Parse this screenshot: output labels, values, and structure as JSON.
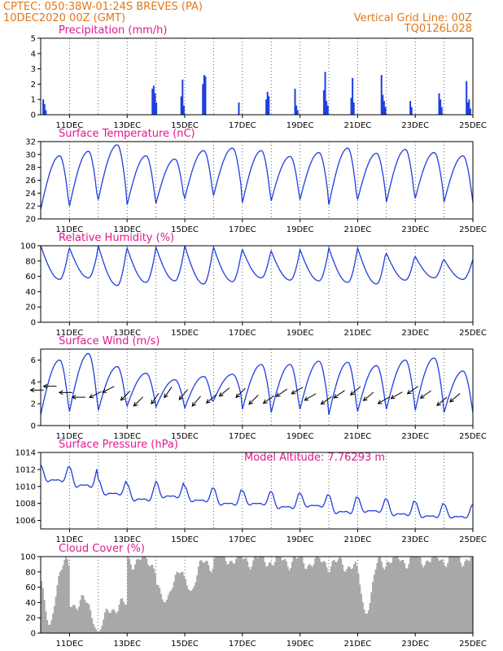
{
  "header": {
    "line1_left": "CPTEC:   050:38W-01:24S   BREVES (PA)",
    "line2_left": "10DEC2020 00Z (GMT)",
    "line1_right": "Vertical Grid Line: 00Z",
    "line2_right": "TQ0126L028",
    "model_altitude": "Model Altitude: 7.76293 m"
  },
  "x_axis": {
    "start": "10DEC2020 00Z",
    "range_days": [
      0,
      15
    ],
    "tick_labels": [
      "11DEC",
      "13DEC",
      "15DEC",
      "17DEC",
      "19DEC",
      "21DEC",
      "23DEC",
      "25DEC"
    ],
    "tick_days": [
      1,
      3,
      5,
      7,
      9,
      11,
      13,
      15
    ],
    "vertical_grid_days": [
      1,
      2,
      3,
      4,
      5,
      6,
      7,
      8,
      9,
      10,
      11,
      12,
      13,
      14
    ]
  },
  "colors": {
    "header": "#e07818",
    "title": "#e0188e",
    "series": "#1f3fe0",
    "cloud": "#a8a8a8"
  },
  "chart_data": [
    {
      "type": "bar",
      "title": "Precipitation (mm/h)",
      "ylim": [
        0,
        5
      ],
      "yticks": [
        "0",
        "1",
        "2",
        "3",
        "4",
        "5"
      ],
      "events": [
        {
          "day": 0.06,
          "values": [
            1.0,
            0.7,
            0.3
          ]
        },
        {
          "day": 3.85,
          "values": [
            1.7,
            1.9,
            1.4,
            0.8
          ]
        },
        {
          "day": 4.85,
          "values": [
            1.2,
            2.3,
            0.6
          ]
        },
        {
          "day": 5.6,
          "values": [
            2.0,
            2.6,
            2.5
          ]
        },
        {
          "day": 6.85,
          "values": [
            0.8
          ]
        },
        {
          "day": 7.8,
          "values": [
            1.0,
            1.5,
            1.2
          ]
        },
        {
          "day": 8.8,
          "values": [
            1.7,
            0.6,
            0.3
          ]
        },
        {
          "day": 9.8,
          "values": [
            1.6,
            2.8,
            0.9,
            0.6
          ]
        },
        {
          "day": 10.75,
          "values": [
            1.1,
            2.4,
            0.8
          ]
        },
        {
          "day": 11.8,
          "values": [
            2.6,
            1.3,
            0.9,
            0.5
          ]
        },
        {
          "day": 12.8,
          "values": [
            0.9,
            0.5
          ]
        },
        {
          "day": 13.8,
          "values": [
            1.4,
            1.0,
            0.5
          ]
        },
        {
          "day": 14.75,
          "values": [
            2.2,
            0.8,
            1.0,
            0.4
          ]
        }
      ]
    },
    {
      "type": "line",
      "title": "Surface Temperature (nC)",
      "ylim": [
        20,
        32
      ],
      "yticks": [
        "20",
        "22",
        "24",
        "26",
        "28",
        "30",
        "32"
      ],
      "profile": {
        "min": [
          21.5,
          22,
          23,
          22.2,
          22.4,
          23.2,
          23.6,
          22.5,
          22.8,
          23,
          22.2,
          23,
          22.6,
          23.2,
          22.6
        ],
        "max": [
          29.8,
          30.5,
          31.5,
          29.8,
          29.3,
          30.6,
          31,
          30.6,
          29.7,
          30.3,
          31,
          30.2,
          30.8,
          30.3,
          29.8
        ]
      }
    },
    {
      "type": "line",
      "title": "Relative Humidity (%)",
      "ylim": [
        0,
        100
      ],
      "yticks": [
        "0",
        "20",
        "40",
        "60",
        "80",
        "100"
      ],
      "profile": {
        "min": [
          56,
          58,
          48,
          52,
          54,
          50,
          53,
          58,
          55,
          54,
          52,
          50,
          55,
          58,
          56
        ],
        "max": [
          100,
          97,
          100,
          97,
          98,
          100,
          98,
          95,
          93,
          95,
          97,
          97,
          90,
          86,
          82
        ]
      }
    },
    {
      "type": "line",
      "title": "Surface Wind (m/s)",
      "ylim": [
        0,
        7
      ],
      "yticks": [
        "0",
        "2",
        "4",
        "6"
      ],
      "profile": {
        "min": [
          1.0,
          1.3,
          1.4,
          1.8,
          1.7,
          1.6,
          2.3,
          1.5,
          1.2,
          1.5,
          1.0,
          1.3,
          1.5,
          1.4,
          1.2
        ],
        "max": [
          6.0,
          6.6,
          5.4,
          4.8,
          4.2,
          4.5,
          4.7,
          5.6,
          5.6,
          5.9,
          5.8,
          5.5,
          6.0,
          6.2,
          5.0
        ]
      },
      "wind_direction_deg": [
        270,
        270,
        243,
        225,
        215,
        220,
        230,
        225,
        235,
        240,
        235,
        230,
        240,
        235,
        230
      ]
    },
    {
      "type": "line",
      "title": "Surface Pressure (hPa)",
      "ylim": [
        1005,
        1014
      ],
      "yticks": [
        "1006",
        "1008",
        "1010",
        "1012",
        "1014"
      ],
      "profile": {
        "max": [
          1012.5,
          1012.3,
          1010.8,
          1010.3,
          1010.6,
          1010.0,
          1009.8,
          1009.5,
          1009.4,
          1009.2,
          1009.0,
          1008.7,
          1008.5,
          1008.2,
          1007.9
        ],
        "min": [
          1009.5,
          1008.6,
          1008.0,
          1007.2,
          1007.6,
          1007.2,
          1006.7,
          1006.9,
          1006.3,
          1006.7,
          1005.6,
          1006.0,
          1005.5,
          1005.3,
          1005.4
        ]
      }
    },
    {
      "type": "area",
      "title": "Cloud Cover (%)",
      "ylim": [
        0,
        100
      ],
      "yticks": [
        "0",
        "20",
        "40",
        "60",
        "80",
        "100"
      ],
      "profile": [
        88,
        40,
        35,
        95,
        80,
        92,
        98,
        96,
        95,
        93,
        90,
        94,
        96,
        97,
        98
      ],
      "dips": [
        {
          "day": 0.3,
          "value": 10
        },
        {
          "day": 2.0,
          "value": 2
        },
        {
          "day": 4.3,
          "value": 40
        },
        {
          "day": 5.2,
          "value": 55
        },
        {
          "day": 11.3,
          "value": 25
        }
      ]
    }
  ]
}
